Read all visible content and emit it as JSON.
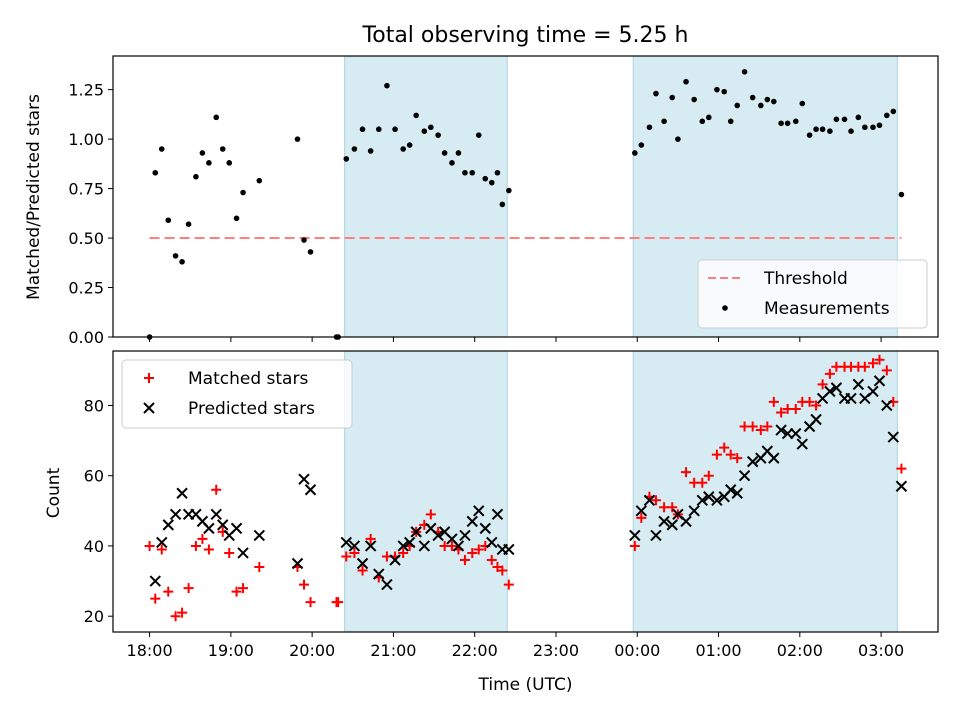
{
  "chart_data": [
    {
      "type": "scatter",
      "title": "Total observing time = 5.25 h",
      "xlabel": "",
      "ylabel": "Matched/Predicted stars",
      "ylim": [
        0,
        1.42
      ],
      "y_ticks": [
        0,
        0.25,
        0.5,
        0.75,
        1.0,
        1.25
      ],
      "y_tick_labels": [
        "0.00",
        "0.25",
        "0.50",
        "0.75",
        "1.00",
        "1.25"
      ],
      "shaded_intervals_hours": [
        [
          20.4,
          22.4
        ],
        [
          23.95,
          27.2
        ]
      ],
      "threshold": {
        "name": "Threshold",
        "value": 0.5,
        "x_range": [
          18.0,
          27.25
        ],
        "color": "#ff7f7f",
        "style": "dashed"
      },
      "legend": {
        "position": "lower-right",
        "entries": [
          "Threshold",
          "Measurements"
        ]
      },
      "series": [
        {
          "name": "Measurements",
          "color": "#000000",
          "marker": "dot",
          "x": [
            18.0,
            18.07,
            18.15,
            18.23,
            18.32,
            18.4,
            18.48,
            18.57,
            18.65,
            18.73,
            18.82,
            18.9,
            18.98,
            19.07,
            19.15,
            19.35,
            19.82,
            19.9,
            19.98,
            20.3,
            20.32,
            20.42,
            20.52,
            20.62,
            20.72,
            20.82,
            20.92,
            21.02,
            21.12,
            21.2,
            21.28,
            21.38,
            21.46,
            21.55,
            21.63,
            21.72,
            21.8,
            21.88,
            21.97,
            22.05,
            22.13,
            22.21,
            22.28,
            22.34,
            22.42,
            23.97,
            24.05,
            24.15,
            24.23,
            24.33,
            24.43,
            24.5,
            24.6,
            24.7,
            24.8,
            24.88,
            24.98,
            25.07,
            25.15,
            25.23,
            25.32,
            25.42,
            25.52,
            25.6,
            25.68,
            25.77,
            25.85,
            25.95,
            26.03,
            26.12,
            26.2,
            26.28,
            26.37,
            26.45,
            26.55,
            26.63,
            26.72,
            26.8,
            26.9,
            26.98,
            27.07,
            27.15,
            27.25
          ],
          "y": [
            0.0,
            0.83,
            0.95,
            0.59,
            0.41,
            0.38,
            0.57,
            0.81,
            0.93,
            0.88,
            1.11,
            0.95,
            0.88,
            0.6,
            0.73,
            0.79,
            1.0,
            0.49,
            0.43,
            0.0,
            0.0,
            0.9,
            0.95,
            1.05,
            0.94,
            1.05,
            1.27,
            1.05,
            0.95,
            0.97,
            1.12,
            1.04,
            1.06,
            1.02,
            0.93,
            0.88,
            0.93,
            0.83,
            0.83,
            1.02,
            0.8,
            0.78,
            0.83,
            0.67,
            0.74,
            0.93,
            0.97,
            1.06,
            1.23,
            1.09,
            1.21,
            1.0,
            1.29,
            1.2,
            1.09,
            1.11,
            1.25,
            1.24,
            1.09,
            1.17,
            1.34,
            1.21,
            1.17,
            1.2,
            1.19,
            1.08,
            1.08,
            1.09,
            1.18,
            1.02,
            1.05,
            1.05,
            1.04,
            1.1,
            1.1,
            1.04,
            1.11,
            1.06,
            1.06,
            1.07,
            1.12,
            1.14,
            0.72
          ]
        }
      ]
    },
    {
      "type": "scatter",
      "title": "",
      "xlabel": "Time (UTC)",
      "ylabel": "Count",
      "ylim": [
        15.5,
        95.5
      ],
      "y_ticks": [
        20,
        40,
        60,
        80
      ],
      "y_tick_labels": [
        "20",
        "40",
        "60",
        "80"
      ],
      "x_ticks_hours": [
        18,
        19,
        20,
        21,
        22,
        23,
        24,
        25,
        26,
        27
      ],
      "x_tick_labels": [
        "18:00",
        "19:00",
        "20:00",
        "21:00",
        "22:00",
        "23:00",
        "00:00",
        "01:00",
        "02:00",
        "03:00"
      ],
      "xlim_hours": [
        17.55,
        27.7
      ],
      "shaded_intervals_hours": [
        [
          20.4,
          22.4
        ],
        [
          23.95,
          27.2
        ]
      ],
      "legend": {
        "position": "upper-left",
        "entries": [
          "Matched stars",
          "Predicted stars"
        ]
      },
      "series": [
        {
          "name": "Matched stars",
          "color": "#ff0000",
          "marker": "plus",
          "x": [
            18.0,
            18.07,
            18.15,
            18.23,
            18.32,
            18.4,
            18.48,
            18.57,
            18.65,
            18.73,
            18.82,
            18.9,
            18.98,
            19.07,
            19.15,
            19.35,
            19.82,
            19.9,
            19.98,
            20.3,
            20.32,
            20.42,
            20.52,
            20.62,
            20.72,
            20.82,
            20.92,
            21.02,
            21.12,
            21.2,
            21.28,
            21.38,
            21.46,
            21.55,
            21.63,
            21.72,
            21.8,
            21.88,
            21.97,
            22.05,
            22.13,
            22.21,
            22.28,
            22.34,
            22.42,
            23.97,
            24.05,
            24.15,
            24.23,
            24.33,
            24.43,
            24.5,
            24.6,
            24.7,
            24.8,
            24.88,
            24.98,
            25.07,
            25.15,
            25.23,
            25.32,
            25.42,
            25.52,
            25.6,
            25.68,
            25.77,
            25.85,
            25.95,
            26.03,
            26.12,
            26.2,
            26.28,
            26.37,
            26.45,
            26.55,
            26.63,
            26.72,
            26.8,
            26.9,
            26.98,
            27.07,
            27.15,
            27.25
          ],
          "y": [
            40,
            25,
            39,
            27,
            20,
            21,
            28,
            40,
            42,
            39,
            56,
            44,
            38,
            27,
            28,
            34,
            34,
            29,
            24,
            24,
            24,
            37,
            38,
            33,
            42,
            31,
            37,
            37,
            38,
            40,
            44,
            46,
            49,
            44,
            40,
            40,
            39,
            36,
            38,
            39,
            40,
            36,
            34,
            33,
            29,
            40,
            48,
            54,
            53,
            51,
            51,
            49,
            61,
            58,
            58,
            60,
            66,
            68,
            66,
            65,
            74,
            74,
            73,
            74,
            81,
            78,
            79,
            79,
            81,
            81,
            80,
            86,
            89,
            91,
            91,
            91,
            91,
            91,
            92,
            93,
            90,
            81,
            62
          ]
        },
        {
          "name": "Predicted stars",
          "color": "#000000",
          "marker": "x",
          "x": [
            18.0,
            18.07,
            18.15,
            18.23,
            18.32,
            18.4,
            18.48,
            18.57,
            18.65,
            18.73,
            18.82,
            18.9,
            18.98,
            19.07,
            19.15,
            19.35,
            19.82,
            19.9,
            19.98,
            20.3,
            20.32,
            20.42,
            20.52,
            20.62,
            20.72,
            20.82,
            20.92,
            21.02,
            21.12,
            21.2,
            21.28,
            21.38,
            21.46,
            21.55,
            21.63,
            21.72,
            21.8,
            21.88,
            21.97,
            22.05,
            22.13,
            22.21,
            22.28,
            22.34,
            22.42,
            23.97,
            24.05,
            24.15,
            24.23,
            24.33,
            24.43,
            24.5,
            24.6,
            24.7,
            24.8,
            24.88,
            24.98,
            25.07,
            25.15,
            25.23,
            25.32,
            25.42,
            25.52,
            25.6,
            25.68,
            25.77,
            25.85,
            25.95,
            26.03,
            26.12,
            26.2,
            26.28,
            26.37,
            26.45,
            26.55,
            26.63,
            26.72,
            26.8,
            26.9,
            26.98,
            27.07,
            27.15,
            27.25
          ],
          "y": [
            null,
            30,
            41,
            46,
            49,
            55,
            49,
            49,
            47,
            45,
            49,
            46,
            43,
            45,
            38,
            43,
            35,
            59,
            56,
            null,
            null,
            41,
            40,
            35,
            40,
            32,
            29,
            36,
            40,
            41,
            44,
            40,
            45,
            43,
            44,
            42,
            40,
            43,
            47,
            50,
            45,
            41,
            49,
            39,
            39,
            43,
            50,
            53,
            43,
            47,
            46,
            49,
            47,
            50,
            53,
            54,
            53,
            54,
            56,
            55,
            60,
            64,
            65,
            67,
            65,
            73,
            72,
            72,
            69,
            74,
            76,
            82,
            84,
            85,
            82,
            82,
            86,
            82,
            84,
            87,
            80,
            71,
            57
          ]
        }
      ]
    }
  ]
}
